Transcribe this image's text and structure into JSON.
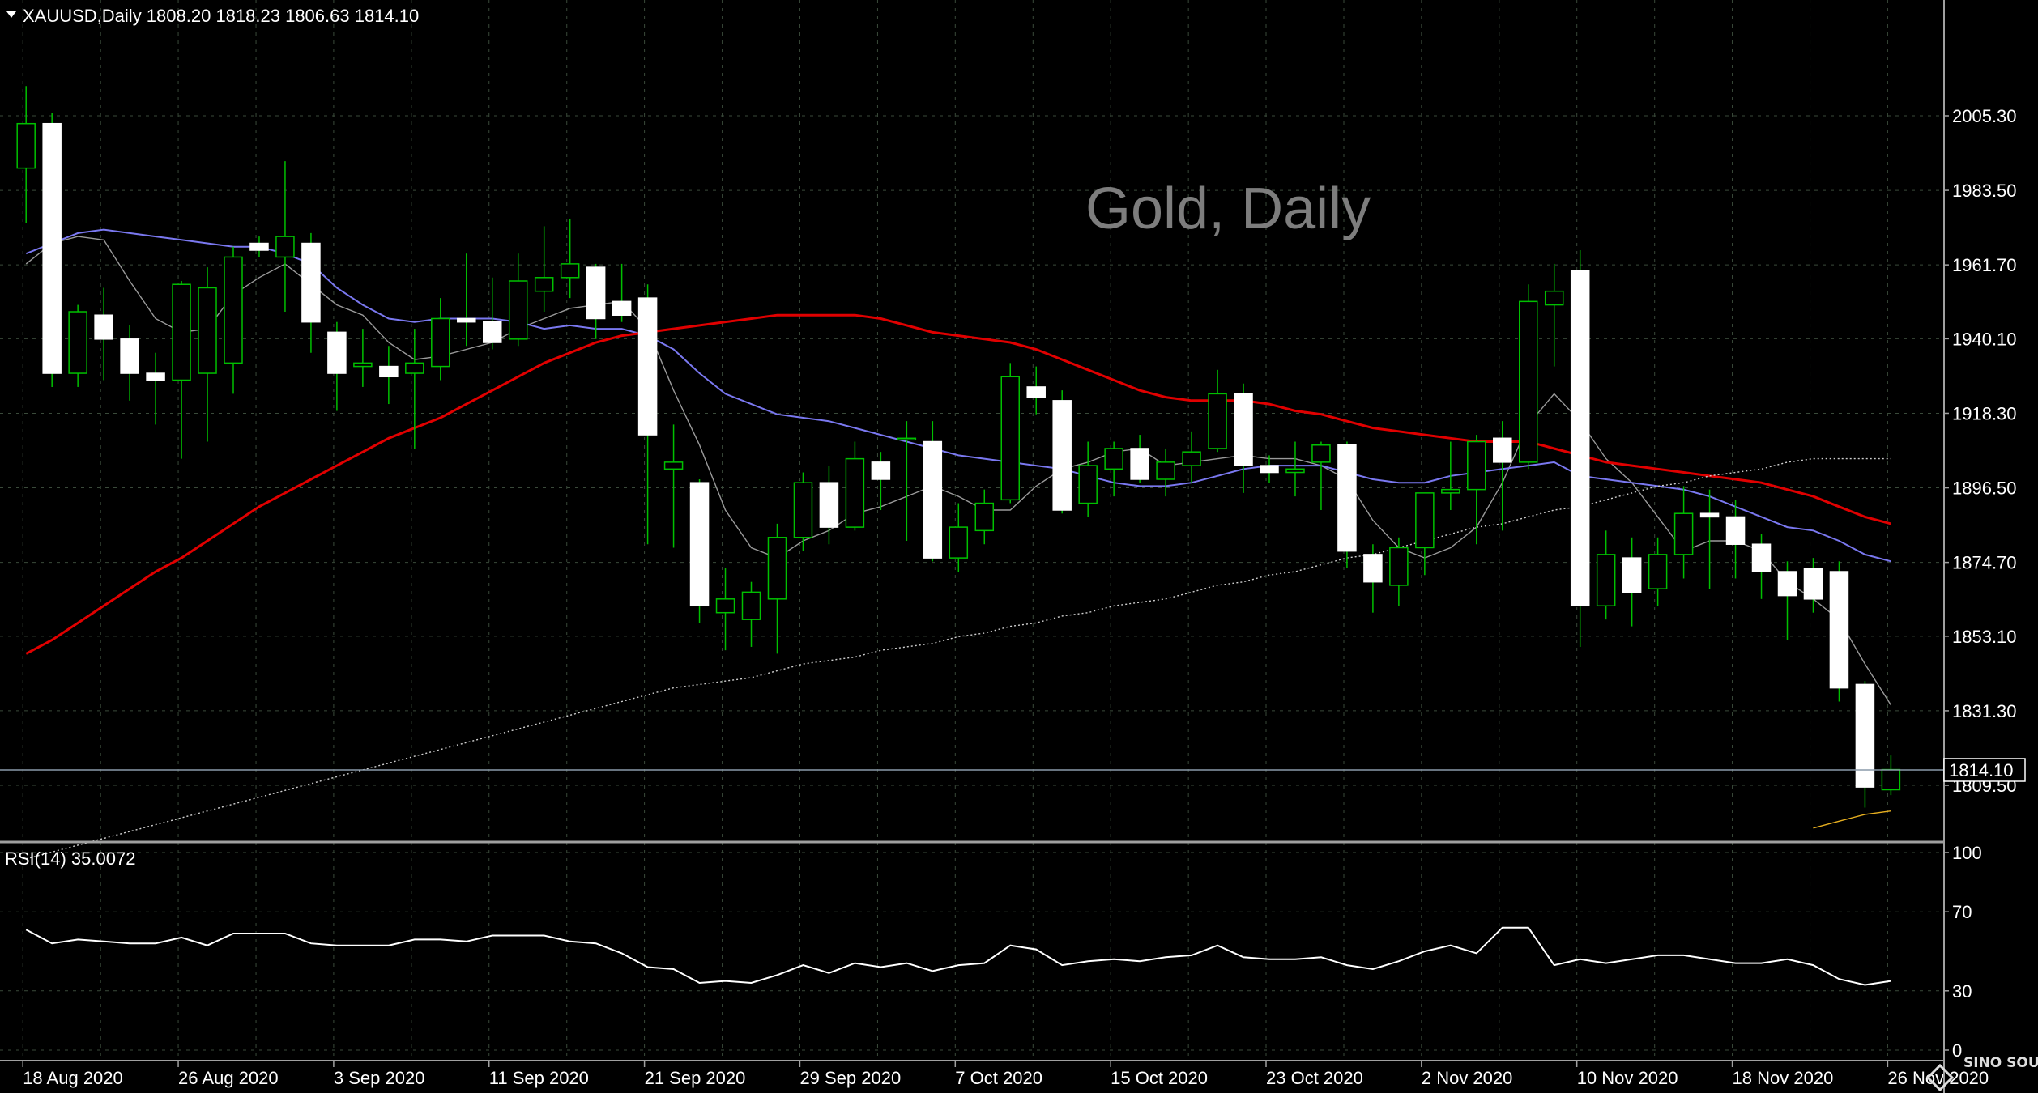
{
  "symbol_header": "XAUUSD,Daily  1808.20 1818.23 1806.63 1814.10",
  "watermark": "Gold, Daily",
  "current_price_label": "1814.10",
  "rsi_header": "RSI(14) 35.0072",
  "logo_text": "SINO SOUND",
  "colors": {
    "background": "#000000",
    "grid": "#3a4a3a",
    "bull_body": "#000000",
    "bull_wick": "#00c000",
    "bear_body": "#ffffff",
    "ma_fast": "#9a9a9a",
    "ma_mid": "#7a78f0",
    "ma_slow": "#e00000",
    "ma_long": "#cfcfcf",
    "ma_extra": "#e8b020",
    "rsi_line": "#ffffff"
  },
  "chart_data": [
    {
      "type": "candlestick",
      "title": "XAUUSD,Daily",
      "x": [
        "18 Aug 2020",
        "19 Aug 2020",
        "20 Aug 2020",
        "21 Aug 2020",
        "24 Aug 2020",
        "25 Aug 2020",
        "26 Aug 2020",
        "27 Aug 2020",
        "28 Aug 2020",
        "31 Aug 2020",
        "1 Sep 2020",
        "2 Sep 2020",
        "3 Sep 2020",
        "4 Sep 2020",
        "7 Sep 2020",
        "8 Sep 2020",
        "9 Sep 2020",
        "10 Sep 2020",
        "11 Sep 2020",
        "14 Sep 2020",
        "15 Sep 2020",
        "16 Sep 2020",
        "17 Sep 2020",
        "18 Sep 2020",
        "21 Sep 2020",
        "22 Sep 2020",
        "23 Sep 2020",
        "24 Sep 2020",
        "25 Sep 2020",
        "28 Sep 2020",
        "29 Sep 2020",
        "30 Sep 2020",
        "1 Oct 2020",
        "2 Oct 2020",
        "5 Oct 2020",
        "6 Oct 2020",
        "7 Oct 2020",
        "8 Oct 2020",
        "9 Oct 2020",
        "12 Oct 2020",
        "13 Oct 2020",
        "14 Oct 2020",
        "15 Oct 2020",
        "16 Oct 2020",
        "19 Oct 2020",
        "20 Oct 2020",
        "21 Oct 2020",
        "22 Oct 2020",
        "23 Oct 2020",
        "26 Oct 2020",
        "27 Oct 2020",
        "28 Oct 2020",
        "29 Oct 2020",
        "30 Oct 2020",
        "2 Nov 2020",
        "3 Nov 2020",
        "4 Nov 2020",
        "5 Nov 2020",
        "6 Nov 2020",
        "9 Nov 2020",
        "10 Nov 2020",
        "11 Nov 2020",
        "12 Nov 2020",
        "13 Nov 2020",
        "16 Nov 2020",
        "17 Nov 2020",
        "18 Nov 2020",
        "19 Nov 2020",
        "20 Nov 2020",
        "23 Nov 2020",
        "24 Nov 2020",
        "25 Nov 2020",
        "26 Nov 2020"
      ],
      "tick_labels": [
        "18 Aug 2020",
        "26 Aug 2020",
        "3 Sep 2020",
        "11 Sep 2020",
        "21 Sep 2020",
        "29 Sep 2020",
        "7 Oct 2020",
        "15 Oct 2020",
        "23 Oct 2020",
        "2 Nov 2020",
        "10 Nov 2020",
        "18 Nov 2020",
        "26 Nov 2020"
      ],
      "y_ticks": [
        "2005.30",
        "1983.50",
        "1961.70",
        "1940.10",
        "1918.30",
        "1896.50",
        "1874.70",
        "1853.10",
        "1831.30",
        "1809.50"
      ],
      "ylim": [
        1798.2,
        2015.5
      ],
      "ohlc": [
        [
          1990.0,
          2014.0,
          1974.0,
          2003.0
        ],
        [
          2003.0,
          2006.0,
          1926.0,
          1930.0
        ],
        [
          1930.0,
          1950.0,
          1926.0,
          1948.0
        ],
        [
          1947.0,
          1955.0,
          1928.0,
          1940.0
        ],
        [
          1940.0,
          1944.0,
          1922.0,
          1930.0
        ],
        [
          1930.0,
          1936.0,
          1915.0,
          1928.0
        ],
        [
          1928.0,
          1957.0,
          1905.0,
          1956.0
        ],
        [
          1930.0,
          1961.0,
          1910.0,
          1955.0
        ],
        [
          1933.0,
          1967.0,
          1924.0,
          1964.0
        ],
        [
          1968.0,
          1970.0,
          1964.0,
          1966.0
        ],
        [
          1964.0,
          1992.0,
          1948.0,
          1970.0
        ],
        [
          1968.0,
          1971.0,
          1936.0,
          1945.0
        ],
        [
          1942.0,
          1945.0,
          1919.0,
          1930.0
        ],
        [
          1932.0,
          1943.0,
          1926.0,
          1933.0
        ],
        [
          1932.0,
          1938.0,
          1921.0,
          1929.0
        ],
        [
          1930.0,
          1943.0,
          1908.0,
          1933.0
        ],
        [
          1932.0,
          1952.0,
          1928.0,
          1946.0
        ],
        [
          1946.0,
          1965.0,
          1938.0,
          1945.0
        ],
        [
          1945.0,
          1958.0,
          1937.0,
          1939.0
        ],
        [
          1940.0,
          1965.0,
          1938.0,
          1957.0
        ],
        [
          1954.0,
          1973.0,
          1948.0,
          1958.0
        ],
        [
          1958.0,
          1975.0,
          1952.0,
          1962.0
        ],
        [
          1961.0,
          1962.0,
          1940.0,
          1946.0
        ],
        [
          1951.0,
          1962.0,
          1945.0,
          1947.0
        ],
        [
          1952.0,
          1956.0,
          1880.0,
          1912.0
        ],
        [
          1902.0,
          1915.0,
          1879.0,
          1904.0
        ],
        [
          1898.0,
          1899.0,
          1857.0,
          1862.0
        ],
        [
          1860.0,
          1873.0,
          1849.0,
          1864.0
        ],
        [
          1858.0,
          1869.0,
          1850.0,
          1866.0
        ],
        [
          1864.0,
          1886.0,
          1848.0,
          1882.0
        ],
        [
          1882.0,
          1901.0,
          1878.0,
          1898.0
        ],
        [
          1898.0,
          1903.0,
          1880.0,
          1885.0
        ],
        [
          1885.0,
          1910.0,
          1884.0,
          1905.0
        ],
        [
          1904.0,
          1907.0,
          1890.0,
          1899.0
        ],
        [
          1911.0,
          1916.0,
          1881.0,
          1911.0
        ],
        [
          1910.0,
          1916.0,
          1875.0,
          1876.0
        ],
        [
          1876.0,
          1892.0,
          1872.0,
          1885.0
        ],
        [
          1884.0,
          1896.0,
          1880.0,
          1892.0
        ],
        [
          1893.0,
          1933.0,
          1892.0,
          1929.0
        ],
        [
          1926.0,
          1932.0,
          1918.0,
          1923.0
        ],
        [
          1922.0,
          1925.0,
          1889.0,
          1890.0
        ],
        [
          1892.0,
          1910.0,
          1888.0,
          1903.0
        ],
        [
          1902.0,
          1910.0,
          1894.0,
          1908.0
        ],
        [
          1908.0,
          1912.0,
          1898.0,
          1899.0
        ],
        [
          1899.0,
          1908.0,
          1894.0,
          1904.0
        ],
        [
          1903.0,
          1913.0,
          1898.0,
          1907.0
        ],
        [
          1908.0,
          1931.0,
          1907.0,
          1924.0
        ],
        [
          1924.0,
          1927.0,
          1895.0,
          1903.0
        ],
        [
          1903.0,
          1906.0,
          1898.0,
          1901.0
        ],
        [
          1901.0,
          1910.0,
          1894.0,
          1902.0
        ],
        [
          1904.0,
          1910.0,
          1890.0,
          1909.0
        ],
        [
          1909.0,
          1910.0,
          1873.0,
          1878.0
        ],
        [
          1877.0,
          1880.0,
          1860.0,
          1869.0
        ],
        [
          1868.0,
          1882.0,
          1862.0,
          1879.0
        ],
        [
          1879.0,
          1895.0,
          1871.0,
          1895.0
        ],
        [
          1895.0,
          1910.0,
          1890.0,
          1896.0
        ],
        [
          1896.0,
          1912.0,
          1880.0,
          1910.0
        ],
        [
          1911.0,
          1916.0,
          1884.0,
          1904.0
        ],
        [
          1904.0,
          1956.0,
          1902.0,
          1951.0
        ],
        [
          1950.0,
          1962.0,
          1932.0,
          1954.0
        ],
        [
          1960.0,
          1966.0,
          1850.0,
          1862.0
        ],
        [
          1862.0,
          1884.0,
          1858.0,
          1877.0
        ],
        [
          1876.0,
          1882.0,
          1856.0,
          1866.0
        ],
        [
          1867.0,
          1882.0,
          1862.0,
          1877.0
        ],
        [
          1877.0,
          1897.0,
          1870.0,
          1889.0
        ],
        [
          1889.0,
          1896.0,
          1867.0,
          1888.0
        ],
        [
          1888.0,
          1893.0,
          1870.0,
          1880.0
        ],
        [
          1880.0,
          1883.0,
          1864.0,
          1872.0
        ],
        [
          1872.0,
          1875.0,
          1852.0,
          1865.0
        ],
        [
          1873.0,
          1876.0,
          1860.0,
          1864.0
        ],
        [
          1872.0,
          1875.0,
          1834.0,
          1838.0
        ],
        [
          1839.0,
          1840.0,
          1803.0,
          1809.0
        ],
        [
          1808.2,
          1818.23,
          1806.63,
          1814.1
        ]
      ],
      "moving_averages": [
        {
          "color": "#9a9a9a",
          "values": [
            1962,
            1968,
            1970,
            1969,
            1957,
            1946,
            1942,
            1943,
            1953,
            1958,
            1962,
            1956,
            1950,
            1947,
            1939,
            1934,
            1935,
            1937,
            1939,
            1943,
            1946,
            1949,
            1950,
            1951,
            1943,
            1925,
            1909,
            1890,
            1879,
            1876,
            1881,
            1884,
            1889,
            1891,
            1894,
            1897,
            1894,
            1890,
            1890,
            1897,
            1902,
            1904,
            1907,
            1908,
            1903,
            1904,
            1905,
            1906,
            1905,
            1905,
            1903,
            1899,
            1887,
            1879,
            1876,
            1879,
            1885,
            1898,
            1915,
            1924,
            1916,
            1905,
            1898,
            1888,
            1878,
            1881,
            1881,
            1878,
            1869,
            1864,
            1858,
            1845,
            1833
          ]
        },
        {
          "color": "#7a78f0",
          "values": [
            1965,
            1968,
            1971,
            1972,
            1971,
            1970,
            1969,
            1968,
            1967,
            1967,
            1965,
            1962,
            1955,
            1950,
            1946,
            1945,
            1946,
            1946,
            1946,
            1945,
            1943,
            1944,
            1943,
            1943,
            1941,
            1937,
            1930,
            1924,
            1921,
            1918,
            1917,
            1916,
            1914,
            1912,
            1910,
            1908,
            1906,
            1905,
            1904,
            1903,
            1902,
            1900,
            1898,
            1897,
            1897,
            1898,
            1900,
            1902,
            1903,
            1903,
            1903,
            1901,
            1899,
            1898,
            1898,
            1900,
            1901,
            1902,
            1903,
            1904,
            1900,
            1899,
            1898,
            1897,
            1896,
            1894,
            1891,
            1888,
            1885,
            1884,
            1881,
            1877,
            1875
          ]
        },
        {
          "color": "#e00000",
          "values": [
            1848,
            1852,
            1857,
            1862,
            1867,
            1872,
            1876,
            1881,
            1886,
            1891,
            1895,
            1899,
            1903,
            1907,
            1911,
            1914,
            1917,
            1921,
            1925,
            1929,
            1933,
            1936,
            1939,
            1941,
            1942,
            1943,
            1944,
            1945,
            1946,
            1947,
            1947,
            1947,
            1947,
            1946,
            1944,
            1942,
            1941,
            1940,
            1939,
            1937,
            1934,
            1931,
            1928,
            1925,
            1923,
            1922,
            1922,
            1922,
            1921,
            1919,
            1918,
            1916,
            1914,
            1913,
            1912,
            1911,
            1910,
            1910,
            1910,
            1908,
            1906,
            1904,
            1903,
            1902,
            1901,
            1900,
            1899,
            1898,
            1896,
            1894,
            1891,
            1888,
            1886
          ]
        },
        {
          "color": "#cfcfcf",
          "values": [
            1788,
            1790,
            1792,
            1794,
            1796,
            1798,
            1800,
            1802,
            1804,
            1806,
            1808,
            1810,
            1812,
            1814,
            1816,
            1818,
            1820,
            1822,
            1824,
            1826,
            1828,
            1830,
            1832,
            1834,
            1836,
            1838,
            1839,
            1840,
            1841,
            1843,
            1845,
            1846,
            1847,
            1849,
            1850,
            1851,
            1853,
            1854,
            1856,
            1857,
            1859,
            1860,
            1862,
            1863,
            1864,
            1866,
            1868,
            1869,
            1871,
            1872,
            1874,
            1876,
            1877,
            1879,
            1881,
            1883,
            1885,
            1886,
            1888,
            1890,
            1891,
            1893,
            1895,
            1897,
            1898,
            1900,
            1901,
            1902,
            1904,
            1905,
            1905,
            1905,
            1905
          ]
        },
        {
          "color": "#e8b020",
          "values": [
            null,
            null,
            null,
            null,
            null,
            null,
            null,
            null,
            null,
            null,
            null,
            null,
            null,
            null,
            null,
            null,
            null,
            null,
            null,
            null,
            null,
            null,
            null,
            null,
            null,
            null,
            null,
            null,
            null,
            null,
            null,
            null,
            null,
            null,
            null,
            null,
            null,
            null,
            null,
            null,
            null,
            null,
            null,
            null,
            null,
            null,
            null,
            null,
            null,
            null,
            null,
            null,
            null,
            null,
            null,
            null,
            null,
            null,
            null,
            null,
            null,
            null,
            null,
            null,
            null,
            null,
            null,
            null,
            null,
            1797,
            1799,
            1801,
            1802
          ]
        }
      ]
    },
    {
      "type": "line",
      "title": "RSI(14) 35.0072",
      "y_ticks": [
        "100",
        "70",
        "30",
        "0"
      ],
      "ylim": [
        0,
        100
      ],
      "values": [
        61,
        54,
        56,
        55,
        54,
        54,
        57,
        53,
        59,
        59,
        59,
        54,
        53,
        53,
        53,
        56,
        56,
        55,
        58,
        58,
        58,
        55,
        54,
        49,
        42,
        41,
        34,
        35,
        34,
        38,
        43,
        39,
        44,
        42,
        44,
        40,
        43,
        44,
        53,
        51,
        43,
        45,
        46,
        45,
        47,
        48,
        53,
        47,
        46,
        46,
        47,
        43,
        41,
        45,
        50,
        53,
        49,
        62,
        62,
        43,
        46,
        44,
        46,
        48,
        48,
        46,
        44,
        44,
        46,
        43,
        36,
        33,
        35
      ]
    }
  ]
}
